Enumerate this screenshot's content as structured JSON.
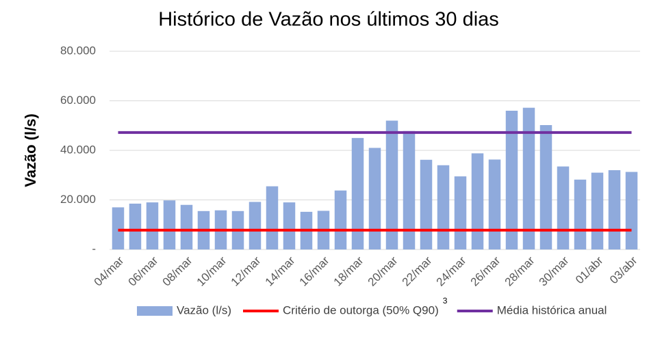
{
  "chart_data": {
    "type": "bar",
    "title": "Histórico de Vazão nos últimos 30 dias",
    "y_label": "Vazão (l/s)",
    "categories": [
      "04/mar",
      null,
      "06/mar",
      null,
      "08/mar",
      null,
      "10/mar",
      null,
      "12/mar",
      null,
      "14/mar",
      null,
      "16/mar",
      null,
      "18/mar",
      null,
      "20/mar",
      null,
      "22/mar",
      null,
      "24/mar",
      null,
      "26/mar",
      null,
      "28/mar",
      null,
      "30/mar",
      null,
      "01/abr",
      null,
      "03/abr"
    ],
    "series": [
      {
        "name": "Vazão (l/s)",
        "type": "bar",
        "color": "#8faadc",
        "values": [
          17000,
          18500,
          19000,
          19800,
          18000,
          15500,
          15800,
          15500,
          19200,
          25500,
          19000,
          15200,
          15600,
          23800,
          45000,
          41000,
          52000,
          47800,
          36200,
          34000,
          29500,
          38800,
          36300,
          56000,
          57200,
          50200,
          33500,
          28200,
          31000,
          32000,
          31300
        ]
      },
      {
        "name": "Critério de outorga (50% Q90)",
        "type": "line",
        "color": "#ff0000",
        "values": [
          7800,
          7800,
          7800,
          7800,
          7800,
          7800,
          7800,
          7800,
          7800,
          7800,
          7800,
          7800,
          7800,
          7800,
          7800,
          7800,
          7800,
          7800,
          7800,
          7800,
          7800,
          7800,
          7800,
          7800,
          7800,
          7800,
          7800,
          7800,
          7800,
          7800,
          7800
        ]
      },
      {
        "name": "Média histórica anual",
        "type": "line",
        "color": "#7030a0",
        "values": [
          47200,
          47200,
          47200,
          47200,
          47200,
          47200,
          47200,
          47200,
          47200,
          47200,
          47200,
          47200,
          47200,
          47200,
          47200,
          47200,
          47200,
          47200,
          47200,
          47200,
          47200,
          47200,
          47200,
          47200,
          47200,
          47200,
          47200,
          47200,
          47200,
          47200,
          47200
        ]
      }
    ],
    "legend_note": "3",
    "ylim": [
      0,
      80000
    ],
    "yticks": [
      {
        "value": 0,
        "label": "-"
      },
      {
        "value": 20000,
        "label": "20.000"
      },
      {
        "value": 40000,
        "label": "40.000"
      },
      {
        "value": 60000,
        "label": "60.000"
      },
      {
        "value": 80000,
        "label": "80.000"
      }
    ],
    "grid": true
  }
}
